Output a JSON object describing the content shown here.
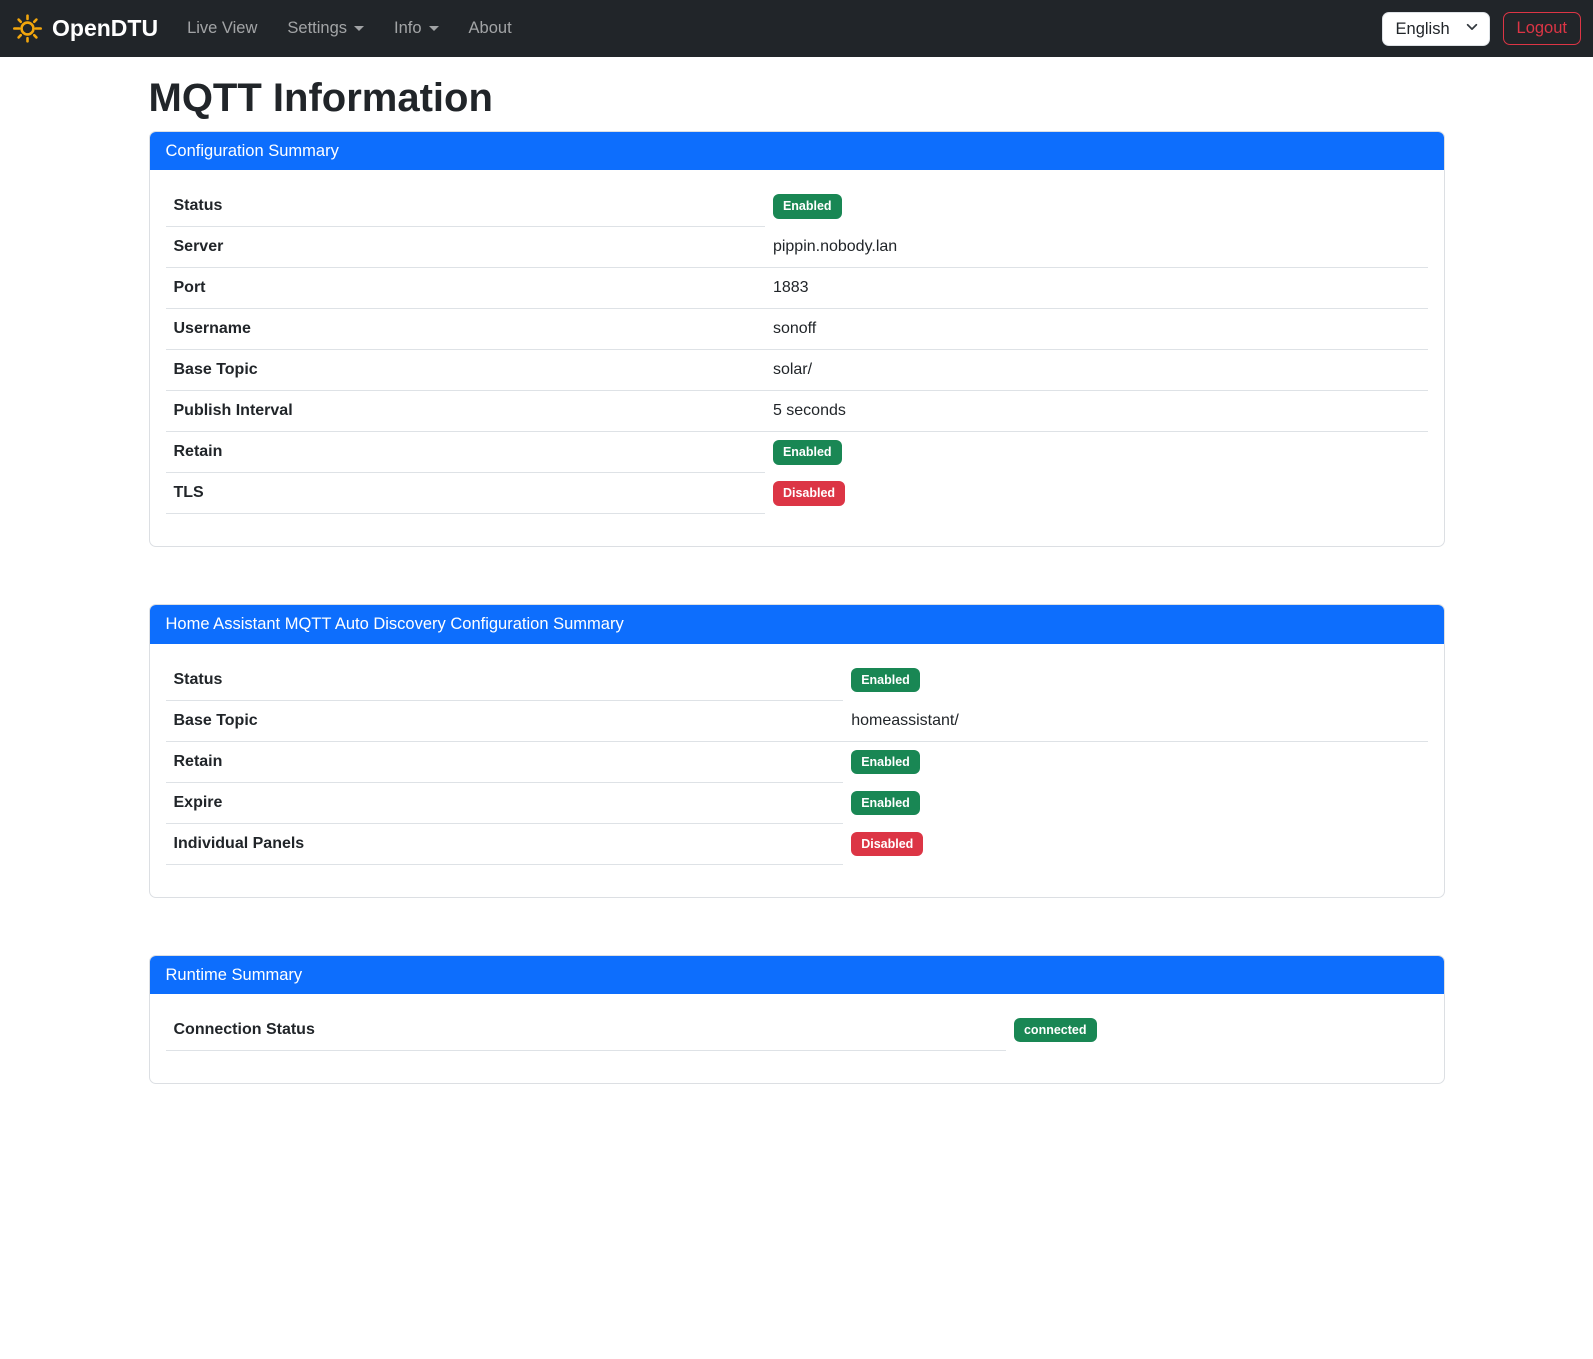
{
  "navbar": {
    "brand": "OpenDTU",
    "items": [
      {
        "label": "Live View",
        "has_dropdown": false
      },
      {
        "label": "Settings",
        "has_dropdown": true
      },
      {
        "label": "Info",
        "has_dropdown": true
      },
      {
        "label": "About",
        "has_dropdown": false
      }
    ],
    "language": {
      "selected": "English"
    },
    "logout": "Logout"
  },
  "page_title": "MQTT Information",
  "colors": {
    "primary": "#0d6efd",
    "success": "#198754",
    "danger": "#dc3545",
    "navbar_bg": "#212529",
    "border": "#dee2e6",
    "sun_icon": "#f2a60d"
  },
  "cards": [
    {
      "header": "Configuration Summary",
      "label_col_pct": 47.5,
      "rows": [
        {
          "label": "Status",
          "type": "badge",
          "value": "Enabled",
          "variant": "success"
        },
        {
          "label": "Server",
          "type": "text",
          "value": "pippin.nobody.lan"
        },
        {
          "label": "Port",
          "type": "text",
          "value": "1883"
        },
        {
          "label": "Username",
          "type": "text",
          "value": "sonoff"
        },
        {
          "label": "Base Topic",
          "type": "text",
          "value": "solar/"
        },
        {
          "label": "Publish Interval",
          "type": "text",
          "value": "5 seconds"
        },
        {
          "label": "Retain",
          "type": "badge",
          "value": "Enabled",
          "variant": "success"
        },
        {
          "label": "TLS",
          "type": "badge",
          "value": "Disabled",
          "variant": "danger"
        }
      ]
    },
    {
      "header": "Home Assistant MQTT Auto Discovery Configuration Summary",
      "label_col_pct": 53.7,
      "rows": [
        {
          "label": "Status",
          "type": "badge",
          "value": "Enabled",
          "variant": "success"
        },
        {
          "label": "Base Topic",
          "type": "text",
          "value": "homeassistant/"
        },
        {
          "label": "Retain",
          "type": "badge",
          "value": "Enabled",
          "variant": "success"
        },
        {
          "label": "Expire",
          "type": "badge",
          "value": "Enabled",
          "variant": "success"
        },
        {
          "label": "Individual Panels",
          "type": "badge",
          "value": "Disabled",
          "variant": "danger"
        }
      ]
    },
    {
      "header": "Runtime Summary",
      "label_col_pct": 66.6,
      "rows": [
        {
          "label": "Connection Status",
          "type": "badge",
          "value": "connected",
          "variant": "success"
        }
      ]
    }
  ]
}
